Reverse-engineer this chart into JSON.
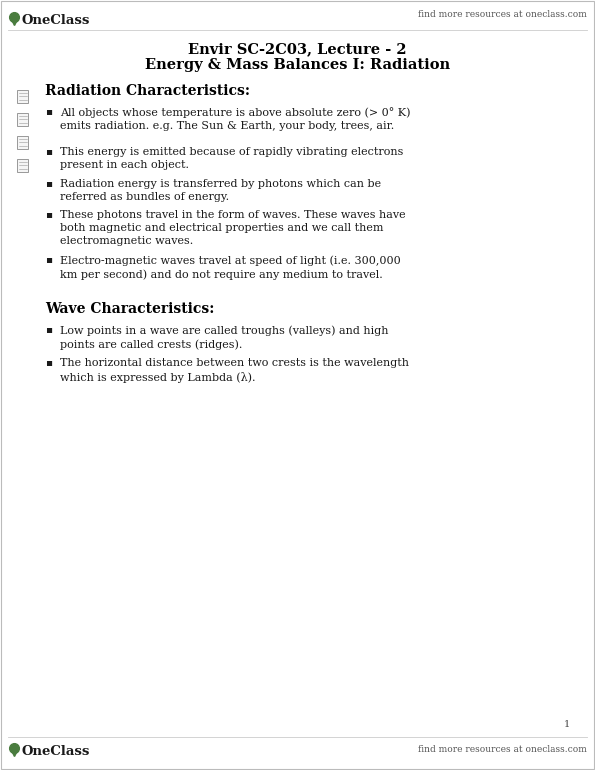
{
  "bg_color": "#ffffff",
  "header_text_small": "find more resources at oneclass.com",
  "header_logo_text": "OneClass",
  "footer_logo_text": "OneClass",
  "footer_text_small": "find more resources at oneclass.com",
  "page_number": "1",
  "title_line1": "Envir SC-2C03, Lecture - 2",
  "title_line2": "Energy & Mass Balances I: Radiation",
  "section1_heading": "Radiation Characteristics:",
  "bullet1": "All objects whose temperature is above absolute zero (> 0° K)\nemits radiation. e.g. The Sun & Earth, your body, trees, air.",
  "bullet2": "This energy is emitted because of rapidly vibrating electrons\npresent in each object.",
  "bullet3": "Radiation energy is transferred by photons which can be\nreferred as bundles of energy.",
  "bullet4": "These photons travel in the form of waves. These waves have\nboth magnetic and electrical properties and we call them\nelectromagnetic waves.",
  "bullet5": "Electro-magnetic waves travel at speed of light (i.e. 300,000\nkm per second) and do not require any medium to travel.",
  "section2_heading": "Wave Characteristics:",
  "bullet6": "Low points in a wave are called troughs (valleys) and high\npoints are called crests (ridges).",
  "bullet7": "The horizontal distance between two crests is the wavelength\nwhich is expressed by Lambda (λ).",
  "note_icon_color": "#999999",
  "text_color": "#1a1a1a",
  "heading_color": "#000000",
  "logo_green": "#4a7c3f",
  "title_fontsize": 10.5,
  "heading_fontsize": 10.0,
  "body_fontsize": 8.0,
  "small_fontsize": 6.5,
  "logo_fontsize": 9.5,
  "page_num_fontsize": 7.0
}
